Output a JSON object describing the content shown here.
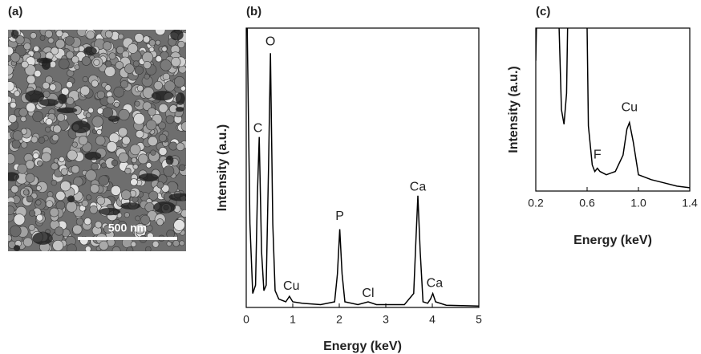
{
  "image_panel": {
    "label": "(a)",
    "scale_bar": "500 nm"
  },
  "chart_data": [
    {
      "type": "line",
      "panel_label": "(b)",
      "x_label": "Energy (keV)",
      "y_label": "Intensity (a.u.)",
      "color": "#000000",
      "x": [
        0.02,
        0.08,
        0.14,
        0.2,
        0.24,
        0.28,
        0.33,
        0.38,
        0.43,
        0.48,
        0.52,
        0.57,
        0.62,
        0.7,
        0.85,
        0.93,
        1.0,
        1.2,
        1.6,
        1.9,
        1.96,
        2.01,
        2.06,
        2.12,
        2.4,
        2.62,
        2.8,
        3.4,
        3.6,
        3.65,
        3.69,
        3.74,
        3.8,
        3.9,
        3.96,
        4.01,
        4.07,
        4.3,
        5
      ],
      "values": [
        100,
        30,
        5,
        8,
        40,
        61,
        20,
        6,
        8,
        50,
        91,
        30,
        6,
        3,
        2,
        4,
        2,
        1.5,
        1,
        2,
        12,
        28,
        12,
        2,
        1,
        2,
        1,
        1,
        5,
        25,
        40,
        20,
        2,
        1.5,
        3,
        5,
        2,
        0.8,
        0.5
      ],
      "xlim": [
        0,
        5
      ],
      "ylim": [
        0,
        100
      ],
      "xticks": [
        0,
        1,
        2,
        3,
        4,
        5
      ],
      "annotations": [
        {
          "text": "O",
          "x": 0.52,
          "y": 95
        },
        {
          "text": "C",
          "x": 0.25,
          "y": 64
        },
        {
          "text": "Cu",
          "x": 0.97,
          "y": 7.5
        },
        {
          "text": "P",
          "x": 2.01,
          "y": 32.5
        },
        {
          "text": "Cl",
          "x": 2.62,
          "y": 5
        },
        {
          "text": "Ca",
          "x": 3.69,
          "y": 43
        },
        {
          "text": "Ca",
          "x": 4.05,
          "y": 8.6
        }
      ]
    },
    {
      "type": "line",
      "panel_label": "(c)",
      "x_label": "Energy (keV)",
      "y_label": "Intensity (a.u.)",
      "color": "#000000",
      "x": [
        0.2,
        0.22,
        0.36,
        0.4,
        0.42,
        0.44,
        0.46,
        0.59,
        0.61,
        0.64,
        0.66,
        0.68,
        0.7,
        0.75,
        0.82,
        0.88,
        0.91,
        0.93,
        0.96,
        1.0,
        1.1,
        1.2,
        1.3,
        1.4
      ],
      "values": [
        80,
        160,
        160,
        50,
        41,
        60,
        160,
        160,
        40,
        16,
        12,
        14,
        12,
        10,
        12,
        22,
        38,
        42,
        30,
        10,
        7,
        5,
        3,
        2
      ],
      "xlim": [
        0.2,
        1.4
      ],
      "ylim": [
        0,
        100
      ],
      "xticks": [
        0.2,
        0.6,
        {
          "value": 1,
          "label": "1.0"
        },
        1.4
      ],
      "annotations": [
        {
          "text": "F",
          "x": 0.68,
          "y": 22
        },
        {
          "text": "Cu",
          "x": 0.93,
          "y": 51
        }
      ]
    }
  ]
}
